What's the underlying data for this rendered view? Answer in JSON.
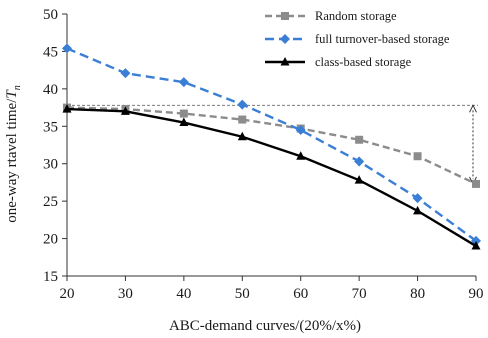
{
  "chart_data": {
    "type": "line",
    "title": "",
    "xlabel": "ABC-demand curves/(20%/x%)",
    "ylabel_prefix": "one-way rtavel time/",
    "ylabel_var": "T",
    "ylabel_sub": "n",
    "x": [
      20,
      30,
      40,
      50,
      60,
      70,
      80,
      90
    ],
    "x_ticks": [
      "20",
      "30",
      "40",
      "50",
      "60",
      "70",
      "80",
      "90"
    ],
    "ylim": [
      15,
      50
    ],
    "y_ticks": [
      "15",
      "20",
      "25",
      "30",
      "35",
      "40",
      "45",
      "50"
    ],
    "y_tick_values": [
      15,
      20,
      25,
      30,
      35,
      40,
      45,
      50
    ],
    "grid": false,
    "legend_position": "top-right",
    "series": [
      {
        "name": "Random storage",
        "values": [
          37.5,
          37.3,
          36.7,
          35.9,
          34.7,
          33.2,
          31.0,
          27.3
        ],
        "color": "#8c8c8c",
        "marker": "square",
        "dash": "dashed"
      },
      {
        "name": "full turnover-based storage",
        "values": [
          45.4,
          42.1,
          40.9,
          37.9,
          34.5,
          30.3,
          25.4,
          19.7
        ],
        "color": "#3a7fd5",
        "marker": "diamond",
        "dash": "dashed"
      },
      {
        "name": "class-based storage",
        "values": [
          37.3,
          37.0,
          35.5,
          33.6,
          31.0,
          27.8,
          23.7,
          19.0
        ],
        "color": "#000000",
        "marker": "triangle",
        "dash": "solid"
      }
    ],
    "annotation": {
      "type": "reference-range",
      "y_from": 37.8,
      "y_to": 27.3,
      "x_at": 90
    }
  }
}
